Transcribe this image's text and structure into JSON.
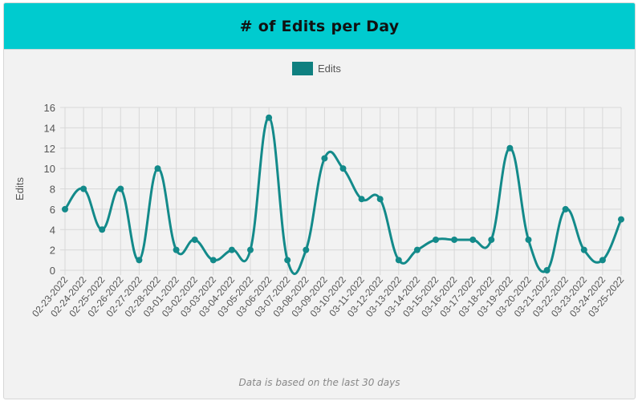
{
  "header": {
    "title": "# of Edits per Day"
  },
  "footer": {
    "note": "Data is based on the last 30 days"
  },
  "chart_data": {
    "type": "line",
    "title": "",
    "xlabel": "",
    "ylabel": "Edits",
    "ylim": [
      0,
      16
    ],
    "yticks": [
      0,
      2,
      4,
      6,
      8,
      10,
      12,
      14,
      16
    ],
    "grid": true,
    "legend": "top",
    "color": "#138a8a",
    "categories": [
      "02-23-2022",
      "02-24-2022",
      "02-25-2022",
      "02-26-2022",
      "02-27-2022",
      "02-28-2022",
      "03-01-2022",
      "03-02-2022",
      "03-03-2022",
      "03-04-2022",
      "03-05-2022",
      "03-06-2022",
      "03-07-2022",
      "03-08-2022",
      "03-09-2022",
      "03-10-2022",
      "03-11-2022",
      "03-12-2022",
      "03-13-2022",
      "03-14-2022",
      "03-15-2022",
      "03-16-2022",
      "03-17-2022",
      "03-18-2022",
      "03-19-2022",
      "03-20-2022",
      "03-21-2022",
      "03-22-2022",
      "03-23-2022",
      "03-24-2022",
      "03-25-2022"
    ],
    "series": [
      {
        "name": "Edits",
        "values": [
          6,
          8,
          4,
          8,
          1,
          10,
          2,
          3,
          1,
          2,
          2,
          15,
          1,
          2,
          11,
          10,
          7,
          7,
          1,
          2,
          3,
          3,
          3,
          3,
          12,
          3,
          0,
          6,
          2,
          1,
          5
        ]
      }
    ]
  }
}
